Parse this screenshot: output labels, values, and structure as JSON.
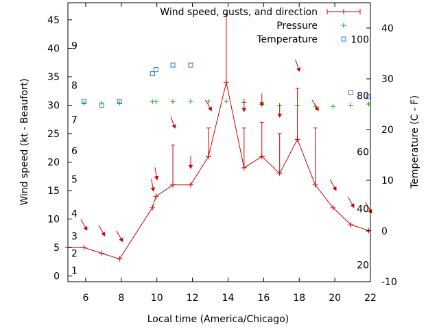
{
  "chart_data": {
    "type": "line",
    "xlabel": "Local time (America/Chicago)",
    "ylabel": "Wind speed (kt - Beaufort)",
    "y2label": "Temperature (C - F)",
    "xlim": [
      5,
      22
    ],
    "ylim": [
      -1,
      48
    ],
    "y2lim": [
      -10,
      45
    ],
    "x_ticks": [
      6,
      8,
      10,
      12,
      14,
      16,
      18,
      20,
      22
    ],
    "y_ticks": [
      0,
      5,
      10,
      15,
      20,
      25,
      30,
      35,
      40,
      45
    ],
    "y2_ticks": [
      -10,
      0,
      10,
      20,
      30,
      40
    ],
    "beaufort_labels": [
      {
        "label": "1",
        "y": 1.0
      },
      {
        "label": "2",
        "y": 4.0
      },
      {
        "label": "3",
        "y": 7.0
      },
      {
        "label": "4",
        "y": 11.0
      },
      {
        "label": "5",
        "y": 17.0
      },
      {
        "label": "6",
        "y": 22.0
      },
      {
        "label": "7",
        "y": 27.5
      },
      {
        "label": "8",
        "y": 33.5
      },
      {
        "label": "9",
        "y": 40.5
      }
    ],
    "fahrenheit_labels": [
      {
        "label": "20",
        "y2": -6.7
      },
      {
        "label": "40",
        "y2": 4.4
      },
      {
        "label": "60",
        "y2": 15.6
      },
      {
        "label": "80",
        "y2": 26.7
      },
      {
        "label": "100",
        "y2": 37.8
      }
    ],
    "legend": {
      "position": "top-right",
      "entries": [
        "Wind speed, gusts, and direction",
        "Pressure",
        "Temperature"
      ]
    },
    "colors": {
      "wind": "#cc0000",
      "pressure": "#00aa00",
      "temperature": "#1f77d4",
      "direction": "#cc0000"
    },
    "series": [
      {
        "name": "Wind speed, gusts, and direction",
        "points": [
          {
            "x": 5.0,
            "y": 5,
            "gust": null
          },
          {
            "x": 5.9,
            "y": 5,
            "gust": null
          },
          {
            "x": 6.9,
            "y": 4,
            "gust": null
          },
          {
            "x": 7.9,
            "y": 3,
            "gust": null
          },
          {
            "x": 9.75,
            "y": 12,
            "gust": null
          },
          {
            "x": 9.95,
            "y": 14,
            "gust": null
          },
          {
            "x": 10.9,
            "y": 16,
            "gust": 23
          },
          {
            "x": 11.9,
            "y": 16,
            "gust": null
          },
          {
            "x": 12.9,
            "y": 21,
            "gust": 26
          },
          {
            "x": 13.9,
            "y": 34,
            "gust": 46
          },
          {
            "x": 14.9,
            "y": 19,
            "gust": 26
          },
          {
            "x": 15.9,
            "y": 21,
            "gust": 27
          },
          {
            "x": 16.9,
            "y": 18,
            "gust": 25
          },
          {
            "x": 17.9,
            "y": 24,
            "gust": 33
          },
          {
            "x": 18.9,
            "y": 16,
            "gust": 26
          },
          {
            "x": 19.9,
            "y": 12,
            "gust": null
          },
          {
            "x": 20.9,
            "y": 9,
            "gust": null
          },
          {
            "x": 21.9,
            "y": 8,
            "gust": null
          }
        ]
      },
      {
        "name": "Pressure",
        "axis": "y",
        "points": [
          {
            "x": 5.9,
            "y": 30.4
          },
          {
            "x": 6.9,
            "y": 30.4
          },
          {
            "x": 7.9,
            "y": 30.4
          },
          {
            "x": 9.75,
            "y": 30.6
          },
          {
            "x": 9.95,
            "y": 30.6
          },
          {
            "x": 10.9,
            "y": 30.6
          },
          {
            "x": 11.9,
            "y": 30.7
          },
          {
            "x": 12.9,
            "y": 30.7
          },
          {
            "x": 13.9,
            "y": 30.7
          },
          {
            "x": 14.9,
            "y": 30.5
          },
          {
            "x": 15.9,
            "y": 30.1
          },
          {
            "x": 16.9,
            "y": 30.0
          },
          {
            "x": 17.9,
            "y": 30.0
          },
          {
            "x": 18.9,
            "y": 29.8
          },
          {
            "x": 19.9,
            "y": 29.8
          },
          {
            "x": 20.9,
            "y": 30.0
          },
          {
            "x": 21.9,
            "y": 30.2
          }
        ]
      },
      {
        "name": "Temperature",
        "axis": "y2",
        "points": [
          {
            "x": 5.9,
            "y2": 25.5
          },
          {
            "x": 6.9,
            "y2": 24.8
          },
          {
            "x": 7.9,
            "y2": 25.5
          },
          {
            "x": 9.75,
            "y2": 31.0
          },
          {
            "x": 9.95,
            "y2": 31.8
          },
          {
            "x": 10.9,
            "y2": 32.7
          },
          {
            "x": 11.9,
            "y2": 32.7
          },
          {
            "x": 20.9,
            "y2": 27.3
          },
          {
            "x": 21.9,
            "y2": 26.5
          }
        ]
      },
      {
        "name": "Direction",
        "arrows": [
          {
            "x": 5.9,
            "y": 9.0,
            "dir": 330
          },
          {
            "x": 6.9,
            "y": 8.0,
            "dir": 330
          },
          {
            "x": 7.9,
            "y": 7.0,
            "dir": 330
          },
          {
            "x": 9.75,
            "y": 16.0,
            "dir": 350
          },
          {
            "x": 9.95,
            "y": 18.0,
            "dir": 350
          },
          {
            "x": 10.9,
            "y": 27.0,
            "dir": 340
          },
          {
            "x": 11.9,
            "y": 20.0,
            "dir": 0
          },
          {
            "x": 12.9,
            "y": 30.0,
            "dir": 330
          },
          {
            "x": 14.9,
            "y": 30.0,
            "dir": 0
          },
          {
            "x": 15.9,
            "y": 31.0,
            "dir": 0
          },
          {
            "x": 16.9,
            "y": 29.0,
            "dir": 0
          },
          {
            "x": 17.9,
            "y": 37.0,
            "dir": 340
          },
          {
            "x": 18.9,
            "y": 30.0,
            "dir": 330
          },
          {
            "x": 19.9,
            "y": 16.0,
            "dir": 330
          },
          {
            "x": 20.9,
            "y": 13.0,
            "dir": 330
          },
          {
            "x": 21.9,
            "y": 12.0,
            "dir": 330
          }
        ]
      }
    ]
  }
}
